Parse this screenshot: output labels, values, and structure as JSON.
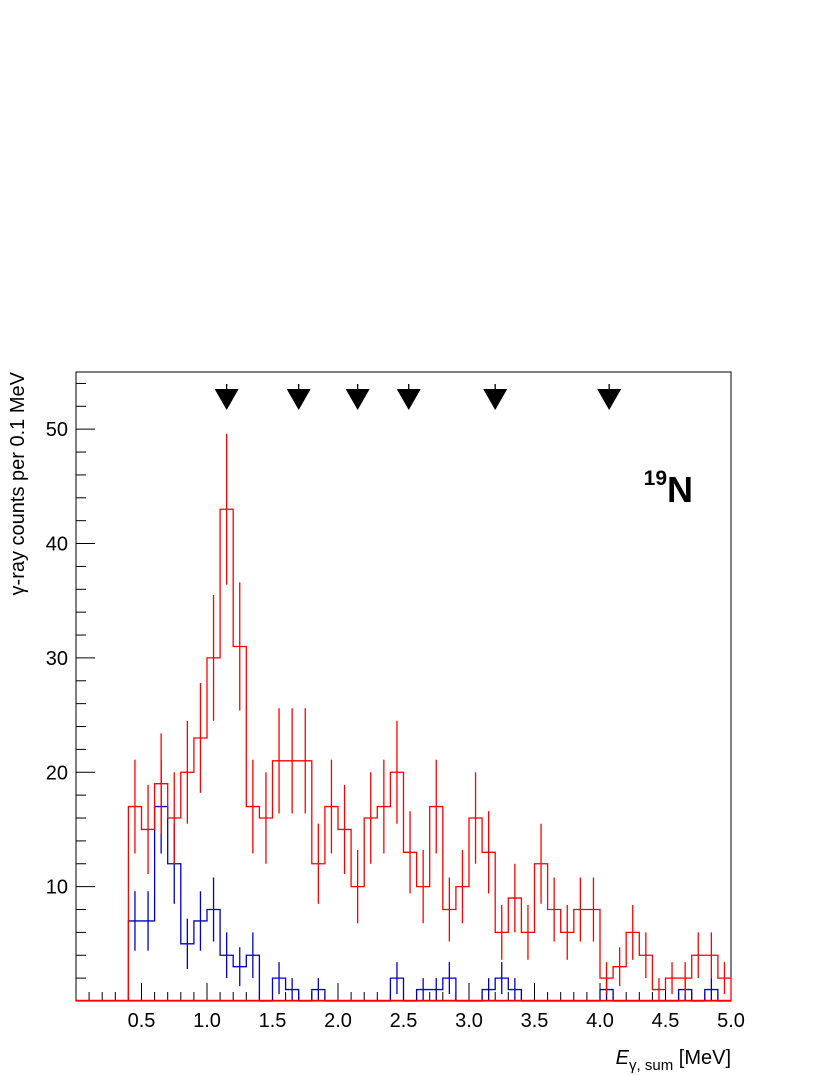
{
  "chart_data": {
    "type": "histogram",
    "xlabel_main": "E",
    "xlabel_sub": "γ, sum",
    "xlabel_unit": " [MeV]",
    "ylabel": "γ-ray counts per 0.1 MeV",
    "annotation_mass": "19",
    "annotation_symbol": "N",
    "xlim": [
      0.0,
      5.0
    ],
    "ylim": [
      0,
      55
    ],
    "x_tick_labels": [
      "0.5",
      "1.0",
      "1.5",
      "2.0",
      "2.5",
      "3.0",
      "3.5",
      "4.0",
      "4.5",
      "5.0"
    ],
    "y_tick_labels": [
      "10",
      "20",
      "30",
      "40",
      "50"
    ],
    "bin_width": 0.1,
    "bin_start": 0.3,
    "arrow_markers_x": [
      1.15,
      1.7,
      2.15,
      2.54,
      3.2,
      4.07
    ],
    "series": [
      {
        "color": "#ff0000",
        "values": [
          17,
          15,
          19,
          16,
          20,
          23,
          30,
          43,
          31,
          17,
          16,
          21,
          21,
          21,
          12,
          17,
          15,
          10,
          16,
          17,
          20,
          13,
          10,
          17,
          8,
          10,
          16,
          13,
          6,
          9,
          6,
          12,
          8,
          6,
          8,
          8,
          2,
          3,
          6,
          4,
          1,
          2,
          2,
          4,
          4,
          2
        ],
        "errors": [
          4.1,
          3.9,
          4.4,
          4.0,
          4.5,
          4.8,
          5.5,
          6.6,
          5.6,
          4.1,
          4.0,
          4.6,
          4.6,
          4.6,
          3.5,
          4.1,
          3.9,
          3.2,
          4.0,
          4.1,
          4.5,
          3.6,
          3.2,
          4.1,
          2.8,
          3.2,
          4.0,
          3.6,
          2.4,
          3.0,
          2.4,
          3.5,
          2.8,
          2.4,
          2.8,
          2.8,
          1.4,
          1.7,
          2.4,
          2.0,
          1.0,
          1.4,
          1.4,
          2.0,
          2.0,
          1.4
        ]
      },
      {
        "color": "#0000cc",
        "values": [
          7,
          7,
          17,
          12,
          5,
          7,
          8,
          4,
          3,
          4,
          0,
          2,
          1,
          0,
          1,
          0,
          0,
          0,
          0,
          0,
          2,
          0,
          1,
          1,
          2,
          0,
          0,
          1,
          2,
          1,
          0,
          0,
          0,
          0,
          0,
          0,
          1,
          0,
          0,
          0,
          0,
          0,
          1,
          0,
          1,
          0
        ],
        "errors": [
          2.6,
          2.6,
          4.1,
          3.5,
          2.2,
          2.6,
          2.8,
          2.0,
          1.7,
          2.0,
          0,
          1.4,
          1.0,
          0,
          1.0,
          0,
          0,
          0,
          0,
          0,
          1.4,
          0,
          1.0,
          1.0,
          1.4,
          0,
          0,
          1.0,
          1.4,
          1.0,
          0,
          0,
          0,
          0,
          0,
          0,
          1.0,
          0,
          0,
          0,
          0,
          0,
          1.0,
          0,
          1.0,
          0
        ]
      }
    ]
  }
}
